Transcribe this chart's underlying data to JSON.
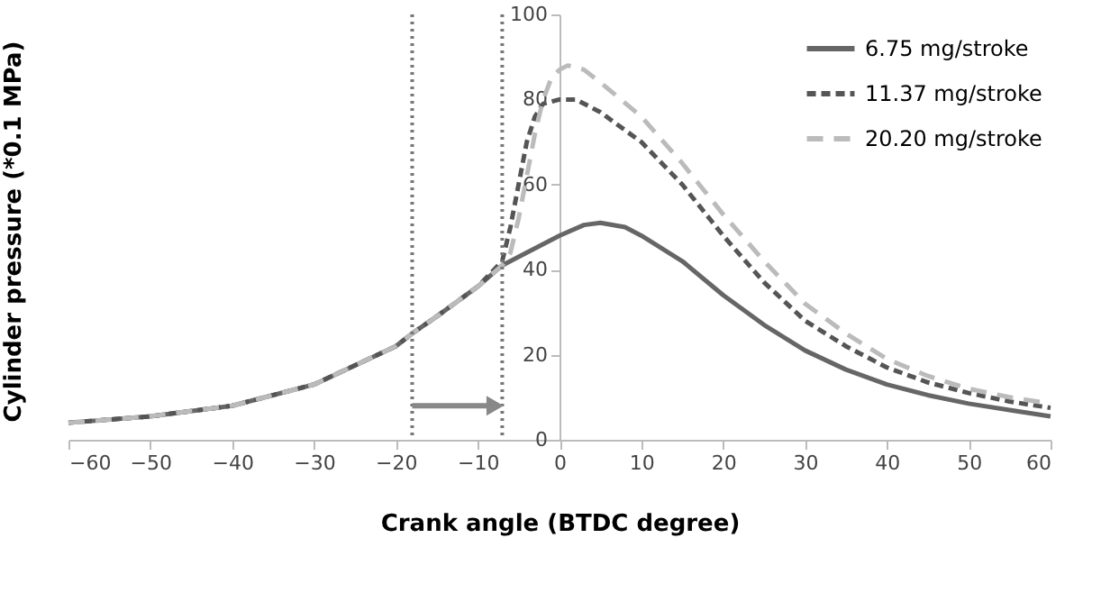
{
  "chart_data": {
    "type": "line",
    "xlabel": "Crank angle (BTDC degree)",
    "ylabel": "Cylinder pressure (*0.1 MPa)",
    "xlim": [
      -60,
      60
    ],
    "xticks": [
      -60,
      -50,
      -40,
      -30,
      -20,
      -10,
      0,
      10,
      20,
      30,
      40,
      50,
      60
    ],
    "ylim": [
      0,
      100
    ],
    "yticks": [
      0,
      20,
      40,
      60,
      80,
      100
    ],
    "grid": false,
    "legend": "top right",
    "marker": "none",
    "series": [
      {
        "name": "6.75 mg/stroke",
        "color": "#666666",
        "line_style": "solid",
        "x": [
          -60,
          -50,
          -40,
          -30,
          -20,
          -18,
          -15,
          -10,
          -7,
          -5,
          0,
          3,
          5,
          8,
          10,
          15,
          20,
          25,
          30,
          35,
          40,
          45,
          50,
          55,
          60
        ],
        "values": [
          4,
          5.5,
          8,
          13,
          22,
          25,
          29,
          36,
          41,
          43,
          48,
          50.5,
          51,
          50,
          48,
          42,
          34,
          27,
          21,
          16.5,
          13,
          10.5,
          8.5,
          7,
          5.5
        ]
      },
      {
        "name": "11.37 mg/stroke",
        "color": "#555555",
        "line_style": "dashed",
        "x": [
          -60,
          -50,
          -40,
          -30,
          -20,
          -18,
          -15,
          -10,
          -7,
          -6,
          -5,
          -4,
          -3,
          -2,
          0,
          2,
          5,
          10,
          15,
          20,
          25,
          30,
          35,
          40,
          45,
          50,
          55,
          60
        ],
        "values": [
          4,
          5.5,
          8,
          13,
          22,
          25,
          29,
          36,
          42,
          50,
          60,
          70,
          76,
          79,
          80,
          80,
          77,
          70,
          60,
          48,
          37,
          28,
          22,
          17,
          13.5,
          11,
          9,
          7.5
        ]
      },
      {
        "name": "20.20 mg/stroke",
        "color": "#bbbbbb",
        "line_style": "dashed",
        "x": [
          -60,
          -50,
          -40,
          -30,
          -20,
          -18,
          -15,
          -10,
          -7,
          -6,
          -5,
          -4,
          -3,
          -2,
          -1,
          0,
          1,
          3,
          5,
          10,
          15,
          20,
          25,
          30,
          35,
          40,
          45,
          50,
          55,
          60
        ],
        "values": [
          4,
          5.5,
          8,
          13,
          22,
          25,
          29,
          36,
          41,
          44,
          52,
          62,
          72,
          80,
          85,
          87,
          88,
          87,
          84,
          76,
          65,
          53,
          42,
          32,
          25,
          19,
          15,
          12,
          10,
          8.5
        ]
      }
    ],
    "ref_lines": [
      {
        "axis": "x",
        "value": -18,
        "color": "#777777",
        "line_style": "dotted"
      },
      {
        "axis": "x",
        "value": -7,
        "color": "#777777",
        "line_style": "dotted"
      }
    ]
  }
}
